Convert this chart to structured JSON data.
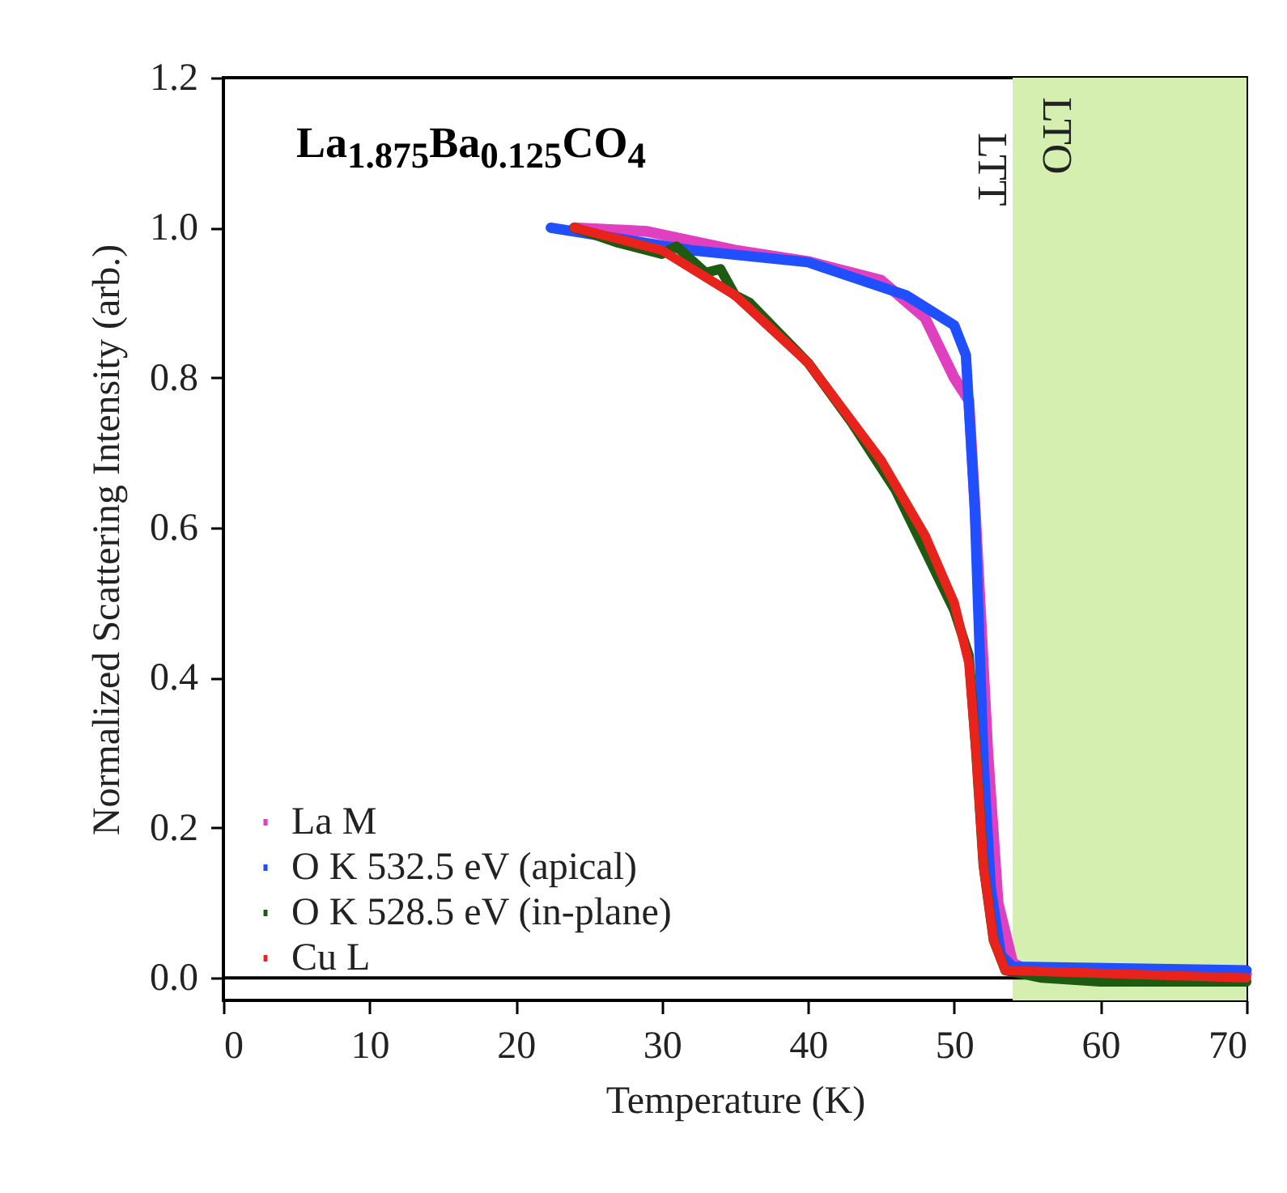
{
  "chart_data": {
    "type": "line",
    "title": "La$_{1.875}$Ba$_{0.125}$CO$_{4}$",
    "xlabel": "Temperature (K)",
    "ylabel": "Normalized Scattering Intensity (arb.)",
    "xlim": [
      0,
      70
    ],
    "xticks": [
      0,
      10,
      20,
      30,
      40,
      50,
      60,
      70
    ],
    "ylim": [
      -0.03,
      1.2
    ],
    "yticks": [
      {
        "value": 0,
        "label": "0.0"
      },
      0.2,
      0.4,
      0.6,
      0.8,
      {
        "value": 1,
        "label": "1.0"
      },
      {
        "value": 1.2,
        "label": "1.2"
      }
    ],
    "grid": false,
    "legend": "bottom left",
    "line_style": "solid",
    "bands": [
      {
        "axis": "x",
        "from": 54,
        "to": 70,
        "label": "LTO",
        "color": "#d4efb0"
      }
    ],
    "ref_lines": [
      {
        "axis": "y",
        "value": 0,
        "color": "#000000"
      }
    ],
    "annotations": [
      "LTT"
    ],
    "series": [
      {
        "name": "La M",
        "color": "#e040c0",
        "x": [
          24,
          29,
          35,
          40,
          45,
          48,
          50,
          51,
          51.5,
          52.3,
          53,
          54,
          55,
          70
        ],
        "values": [
          1.0,
          0.995,
          0.97,
          0.955,
          0.93,
          0.88,
          0.8,
          0.77,
          0.6,
          0.3,
          0.1,
          0.02,
          0.01,
          0.005
        ]
      },
      {
        "name": "O K 532.5 eV (apical)",
        "color": "#1f4fff",
        "x": [
          22.4,
          32,
          40,
          46.7,
          50,
          50.8,
          51.4,
          52,
          52.5,
          53.2,
          54,
          70
        ],
        "values": [
          1.0,
          0.97,
          0.954,
          0.91,
          0.87,
          0.83,
          0.63,
          0.29,
          0.12,
          0.03,
          0.015,
          0.01
        ]
      },
      {
        "name": "O K 528.5 eV (in-plane)",
        "color": "#1d5a12",
        "x": [
          24,
          27,
          30,
          31,
          33,
          34,
          35,
          36,
          40,
          43,
          46,
          48,
          50,
          51,
          51.5,
          52,
          52.7,
          53.5,
          56,
          60,
          70
        ],
        "values": [
          1.0,
          0.98,
          0.965,
          0.975,
          0.94,
          0.945,
          0.91,
          0.9,
          0.82,
          0.74,
          0.65,
          0.57,
          0.49,
          0.43,
          0.3,
          0.15,
          0.05,
          0.01,
          0.0,
          -0.005,
          -0.005
        ]
      },
      {
        "name": "Cu L",
        "color": "#e8231c",
        "x": [
          24,
          30,
          35,
          40,
          45,
          48,
          50,
          51,
          51.5,
          52,
          52.7,
          53.5,
          70
        ],
        "values": [
          1.0,
          0.97,
          0.91,
          0.82,
          0.69,
          0.59,
          0.5,
          0.42,
          0.3,
          0.15,
          0.05,
          0.01,
          0.0
        ]
      }
    ]
  }
}
